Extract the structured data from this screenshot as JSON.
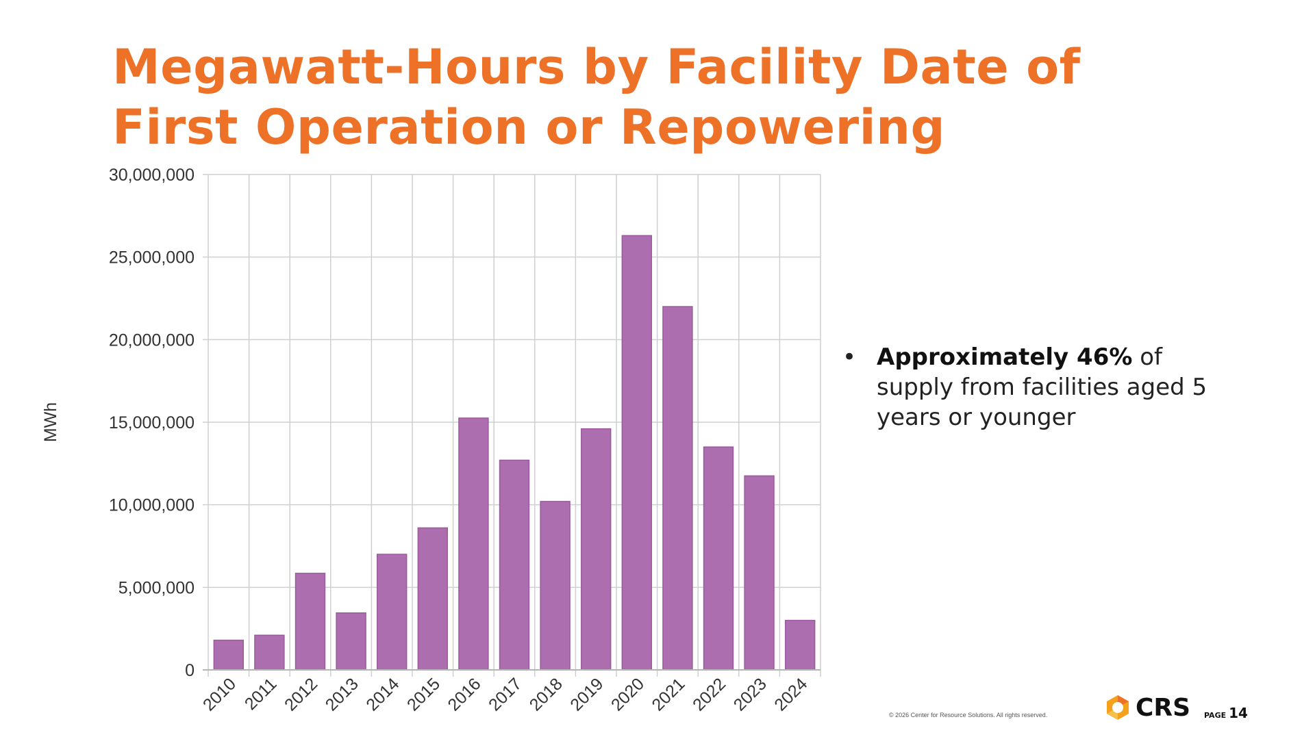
{
  "slide": {
    "title_line1": "Megawatt-Hours by Facility Date of",
    "title_line2": "First Operation or Repowering",
    "bullet": {
      "bold": "Approximately 46%",
      "rest": " of supply from facilities aged 5 years or younger"
    },
    "footer": "© 2026 Center for Resource Solutions. All rights reserved.",
    "logo_text": "CRS",
    "page_label": "PAGE",
    "page_number": "14",
    "colors": {
      "title": "#ee7128",
      "bar": "#ad6eb0",
      "bar_edge": "#9a5a9e",
      "logo_orange": "#f4a11c"
    }
  },
  "chart_data": {
    "type": "bar",
    "categories": [
      "2010",
      "2011",
      "2012",
      "2013",
      "2014",
      "2015",
      "2016",
      "2017",
      "2018",
      "2019",
      "2020",
      "2021",
      "2022",
      "2023",
      "2024"
    ],
    "values": [
      1800000,
      2100000,
      5850000,
      3450000,
      7000000,
      8600000,
      15250000,
      12700000,
      10200000,
      14600000,
      26300000,
      22000000,
      13500000,
      11750000,
      3000000
    ],
    "ylabel": "MWh",
    "xlabel": "",
    "ylim": [
      0,
      30000000
    ],
    "yticks": [
      "0",
      "5,000,000",
      "10,000,000",
      "15,000,000",
      "20,000,000",
      "25,000,000",
      "30,000,000"
    ],
    "grid": true,
    "legend": "none"
  }
}
